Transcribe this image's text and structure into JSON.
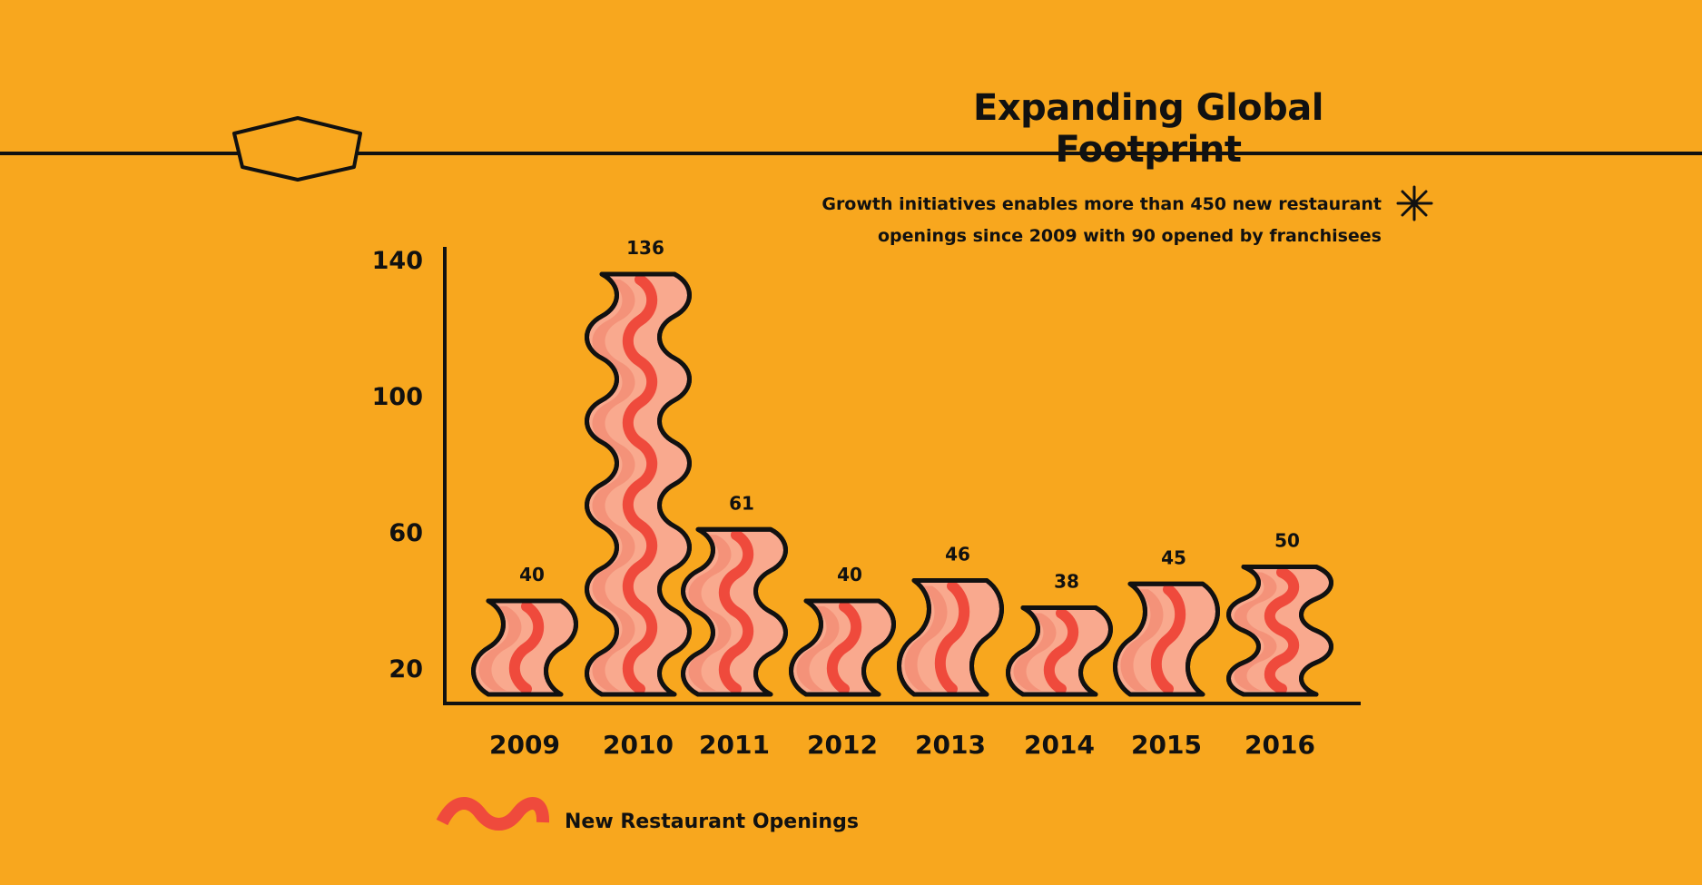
{
  "colors": {
    "background": "#F8A71E",
    "ink": "#111111",
    "bacon_fill": "#F9A98E",
    "bacon_shade": "#F28B72",
    "bacon_stripe": "#EF4A3C"
  },
  "header": {
    "title": "Expanding Global Footprint",
    "note_line1": "Growth initiatives enables more than 450 new restaurant",
    "note_line2": "openings since 2009 with 90 opened by franchisees",
    "badge_icon": "hexagon-badge-icon",
    "note_icon": "asterisk-icon"
  },
  "legend": {
    "label": "New Restaurant Openings",
    "icon": "bacon-wave-icon"
  },
  "chart_data": {
    "type": "bar",
    "title": "Expanding Global Footprint",
    "xlabel": "",
    "ylabel": "",
    "categories": [
      "2009",
      "2010",
      "2011",
      "2012",
      "2013",
      "2014",
      "2015",
      "2016"
    ],
    "series": [
      {
        "name": "New Restaurant Openings",
        "values": [
          40,
          136,
          61,
          40,
          46,
          38,
          45,
          50
        ]
      }
    ],
    "yticks": [
      20,
      60,
      100,
      140
    ],
    "ylim": [
      10,
      140
    ],
    "grid": false,
    "legend_position": "bottom-left"
  }
}
